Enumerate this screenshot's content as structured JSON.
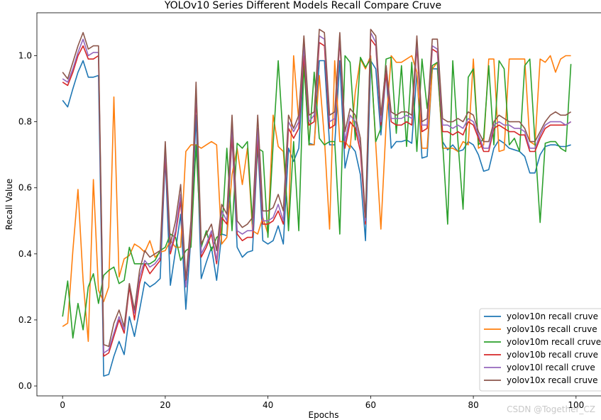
{
  "chart_data": {
    "type": "line",
    "title": "YOLOv10 Series Different Models Recall Compare Cruve",
    "xlabel": "Epochs",
    "ylabel": "Recall Value",
    "xlim": [
      -5,
      105
    ],
    "ylim": [
      -0.03,
      1.13
    ],
    "xticks": [
      0,
      20,
      40,
      60,
      80,
      100
    ],
    "yticks": [
      0.0,
      0.2,
      0.4,
      0.6,
      0.8,
      1.0
    ],
    "xtick_labels": [
      "0",
      "20",
      "40",
      "60",
      "80",
      "100"
    ],
    "ytick_labels": [
      "0.0",
      "0.2",
      "0.4",
      "0.6",
      "0.8",
      "1.0"
    ],
    "grid": false,
    "legend_position": "lower-right",
    "watermark": "CSDN @Together_CZ",
    "series": [
      {
        "name": "yolov10n recall cruve",
        "color": "#1f77b4",
        "values": [
          0.865,
          0.845,
          0.9,
          0.95,
          0.985,
          0.935,
          0.935,
          0.94,
          0.03,
          0.035,
          0.09,
          0.135,
          0.095,
          0.21,
          0.15,
          0.23,
          0.315,
          0.3,
          0.31,
          0.325,
          0.69,
          0.305,
          0.41,
          0.52,
          0.232,
          0.45,
          0.82,
          0.325,
          0.375,
          0.42,
          0.32,
          0.46,
          0.455,
          0.76,
          0.42,
          0.39,
          0.405,
          0.41,
          0.73,
          0.44,
          0.43,
          0.44,
          0.485,
          0.43,
          0.72,
          0.68,
          0.72,
          0.985,
          0.735,
          0.73,
          0.985,
          0.985,
          0.73,
          0.73,
          0.985,
          0.66,
          0.73,
          0.71,
          0.64,
          0.44,
          0.985,
          0.96,
          0.76,
          0.95,
          0.72,
          0.74,
          0.74,
          0.745,
          0.735,
          0.95,
          0.69,
          0.695,
          0.96,
          0.96,
          0.74,
          0.715,
          0.73,
          0.71,
          0.715,
          0.74,
          0.73,
          0.7,
          0.65,
          0.655,
          0.72,
          0.745,
          0.735,
          0.72,
          0.715,
          0.71,
          0.695,
          0.645,
          0.645,
          0.7,
          0.725,
          0.73,
          0.73,
          0.725,
          0.725,
          0.73
        ]
      },
      {
        "name": "yolov10s recall cruve",
        "color": "#ff7f0e",
        "values": [
          0.18,
          0.19,
          0.41,
          0.595,
          0.32,
          0.135,
          0.625,
          0.29,
          0.255,
          0.3,
          0.875,
          0.33,
          0.385,
          0.395,
          0.43,
          0.42,
          0.405,
          0.44,
          0.39,
          0.405,
          0.41,
          0.44,
          0.42,
          0.42,
          0.71,
          0.73,
          0.73,
          0.72,
          0.73,
          0.74,
          0.73,
          0.43,
          0.45,
          0.64,
          0.72,
          0.61,
          0.72,
          0.47,
          0.46,
          0.51,
          0.46,
          0.82,
          0.725,
          0.71,
          0.49,
          1.0,
          0.8,
          1.055,
          0.73,
          0.73,
          0.94,
          0.75,
          0.475,
          0.985,
          0.74,
          0.74,
          0.72,
          0.89,
          0.99,
          0.96,
          1.0,
          0.73,
          0.475,
          0.79,
          1.0,
          0.98,
          0.98,
          0.99,
          1.0,
          0.95,
          0.72,
          0.72,
          0.96,
          0.98,
          0.72,
          0.72,
          0.72,
          0.71,
          0.74,
          0.73,
          0.99,
          0.72,
          0.73,
          0.99,
          0.99,
          0.71,
          0.715,
          0.99,
          0.99,
          0.99,
          0.99,
          0.74,
          0.73,
          0.99,
          0.98,
          1.0,
          0.95,
          0.99,
          1.0,
          1.0
        ]
      },
      {
        "name": "yolov10m recall cruve",
        "color": "#2ca02c",
        "values": [
          0.21,
          0.318,
          0.145,
          0.25,
          0.17,
          0.3,
          0.34,
          0.25,
          0.335,
          0.35,
          0.36,
          0.31,
          0.32,
          0.42,
          0.37,
          0.37,
          0.37,
          0.37,
          0.38,
          0.41,
          0.42,
          0.46,
          0.45,
          0.38,
          0.41,
          0.42,
          0.73,
          0.42,
          0.47,
          0.41,
          0.45,
          0.46,
          0.72,
          0.47,
          0.735,
          0.72,
          0.74,
          0.49,
          0.72,
          0.71,
          0.45,
          0.73,
          0.985,
          0.74,
          0.47,
          0.74,
          0.47,
          0.975,
          0.73,
          0.95,
          0.75,
          0.73,
          0.74,
          0.74,
          0.46,
          1.0,
          0.98,
          0.745,
          0.995,
          0.965,
          0.99,
          0.74,
          0.78,
          0.99,
          0.995,
          0.765,
          0.97,
          0.725,
          0.98,
          0.71,
          0.99,
          0.84,
          0.97,
          0.98,
          0.74,
          0.49,
          0.985,
          0.74,
          0.535,
          0.935,
          0.96,
          0.73,
          0.75,
          0.97,
          0.73,
          0.985,
          0.96,
          0.73,
          0.75,
          0.71,
          0.97,
          0.99,
          0.74,
          0.495,
          0.735,
          0.74,
          0.74,
          0.72,
          0.71,
          0.975
        ]
      },
      {
        "name": "yolov10b recall cruve",
        "color": "#d62728",
        "values": [
          0.92,
          0.91,
          0.95,
          1.0,
          1.03,
          0.99,
          0.99,
          1.0,
          0.09,
          0.1,
          0.15,
          0.2,
          0.16,
          0.3,
          0.2,
          0.31,
          0.37,
          0.34,
          0.36,
          0.38,
          0.7,
          0.4,
          0.46,
          0.56,
          0.3,
          0.46,
          0.88,
          0.39,
          0.42,
          0.46,
          0.37,
          0.51,
          0.49,
          0.76,
          0.46,
          0.44,
          0.45,
          0.45,
          0.75,
          0.49,
          0.49,
          0.5,
          0.53,
          0.49,
          0.78,
          0.75,
          0.78,
          1.0,
          0.79,
          0.8,
          1.04,
          1.03,
          0.78,
          0.79,
          1.05,
          0.72,
          0.8,
          0.78,
          0.71,
          0.49,
          1.05,
          1.03,
          0.79,
          0.95,
          0.8,
          0.79,
          0.79,
          0.8,
          0.79,
          1.03,
          0.77,
          0.78,
          1.02,
          1.01,
          0.77,
          0.77,
          0.76,
          0.77,
          0.76,
          0.8,
          0.79,
          0.75,
          0.71,
          0.71,
          0.78,
          0.79,
          0.78,
          0.77,
          0.77,
          0.76,
          0.76,
          0.71,
          0.71,
          0.75,
          0.78,
          0.79,
          0.79,
          0.79,
          0.79,
          0.8
        ]
      },
      {
        "name": "yolov10l recall cruve",
        "color": "#9467bd",
        "values": [
          0.93,
          0.92,
          0.96,
          1.01,
          1.05,
          1.0,
          1.01,
          1.01,
          0.1,
          0.11,
          0.16,
          0.21,
          0.17,
          0.31,
          0.22,
          0.33,
          0.38,
          0.36,
          0.37,
          0.39,
          0.72,
          0.41,
          0.47,
          0.58,
          0.3,
          0.48,
          0.9,
          0.4,
          0.43,
          0.47,
          0.38,
          0.53,
          0.5,
          0.79,
          0.47,
          0.46,
          0.47,
          0.47,
          0.78,
          0.5,
          0.5,
          0.51,
          0.55,
          0.5,
          0.8,
          0.77,
          0.8,
          1.03,
          0.8,
          0.82,
          1.06,
          1.05,
          0.8,
          0.81,
          1.06,
          0.74,
          0.82,
          0.8,
          0.73,
          0.5,
          1.07,
          1.04,
          0.8,
          0.97,
          0.81,
          0.81,
          0.81,
          0.82,
          0.81,
          1.04,
          0.79,
          0.79,
          1.03,
          1.02,
          0.79,
          0.79,
          0.78,
          0.79,
          0.78,
          0.81,
          0.8,
          0.76,
          0.72,
          0.72,
          0.79,
          0.8,
          0.79,
          0.79,
          0.78,
          0.78,
          0.77,
          0.72,
          0.72,
          0.76,
          0.79,
          0.8,
          0.8,
          0.8,
          0.79,
          0.8
        ]
      },
      {
        "name": "yolov10x recall cruve",
        "color": "#8c564b",
        "values": [
          0.95,
          0.93,
          0.98,
          1.03,
          1.07,
          1.02,
          1.03,
          1.03,
          0.125,
          0.12,
          0.19,
          0.23,
          0.18,
          0.31,
          0.23,
          0.35,
          0.41,
          0.39,
          0.4,
          0.41,
          0.74,
          0.43,
          0.5,
          0.61,
          0.32,
          0.5,
          0.92,
          0.43,
          0.46,
          0.49,
          0.41,
          0.55,
          0.52,
          0.82,
          0.5,
          0.48,
          0.49,
          0.51,
          0.82,
          0.53,
          0.53,
          0.54,
          0.58,
          0.53,
          0.82,
          0.78,
          0.82,
          1.06,
          0.82,
          0.83,
          1.08,
          1.07,
          0.82,
          0.83,
          1.07,
          0.77,
          0.84,
          0.82,
          0.75,
          0.51,
          1.08,
          1.06,
          0.82,
          0.97,
          0.83,
          0.82,
          0.83,
          0.83,
          0.82,
          1.06,
          0.8,
          0.81,
          1.05,
          1.05,
          0.81,
          0.8,
          0.8,
          0.81,
          0.8,
          0.83,
          0.82,
          0.77,
          0.74,
          0.74,
          0.8,
          0.82,
          0.81,
          0.8,
          0.8,
          0.8,
          0.78,
          0.74,
          0.74,
          0.77,
          0.8,
          0.82,
          0.83,
          0.82,
          0.82,
          0.83
        ]
      }
    ]
  }
}
